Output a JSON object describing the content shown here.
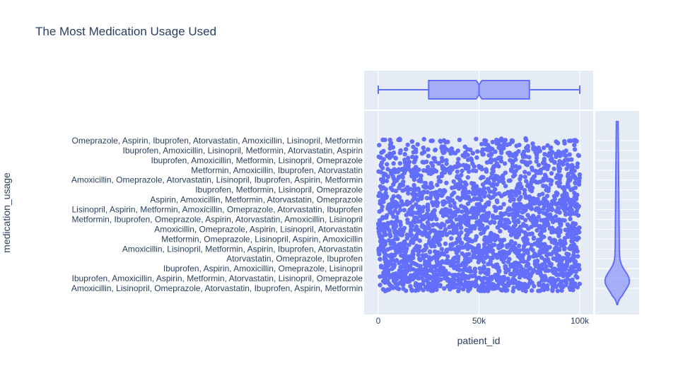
{
  "chart_data": {
    "type": "scatter",
    "title": "The Most Medication Usage Used",
    "xlabel": "patient_id",
    "ylabel": "medication_usage",
    "xlim": [
      -5000,
      106000
    ],
    "x_ticks": [
      {
        "value": 0,
        "label": "0"
      },
      {
        "value": 50000,
        "label": "50k"
      },
      {
        "value": 100000,
        "label": "100k"
      }
    ],
    "categories_top_to_bottom": [
      "Omeprazole, Aspirin, Ibuprofen, Atorvastatin, Amoxicillin, Lisinopril, Metformin",
      "Ibuprofen, Amoxicillin, Lisinopril, Metformin, Atorvastatin, Aspirin",
      "Ibuprofen, Amoxicillin, Metformin, Lisinopril, Omeprazole",
      "Metformin, Amoxicillin, Ibuprofen, Atorvastatin",
      "Amoxicillin, Omeprazole, Atorvastatin, Lisinopril, Ibuprofen, Aspirin, Metformin",
      "Ibuprofen, Metformin, Lisinopril, Omeprazole",
      "Aspirin, Amoxicillin, Metformin, Atorvastatin, Omeprazole",
      "Lisinopril, Aspirin, Metformin, Amoxicillin, Omeprazole, Atorvastatin, Ibuprofen",
      "Metformin, Ibuprofen, Omeprazole, Aspirin, Atorvastatin, Amoxicillin, Lisinopril",
      "Amoxicillin, Omeprazole, Aspirin, Lisinopril, Atorvastatin",
      "Metformin, Omeprazole, Lisinopril, Aspirin, Amoxicillin",
      "Amoxicillin, Lisinopril, Metformin, Aspirin, Ibuprofen, Atorvastatin",
      "Atorvastatin, Omeprazole, Ibuprofen",
      "Ibuprofen, Aspirin, Amoxicillin, Omeprazole, Lisinopril",
      "Ibuprofen, Amoxicillin, Aspirin, Metformin, Atorvastatin, Lisinopril, Omeprazole",
      "Amoxicillin, Lisinopril, Omeprazole, Atorvastatin, Ibuprofen, Aspirin, Metformin"
    ],
    "scatter": {
      "x_range": [
        0,
        100000
      ],
      "note_points_cover_all_categories": true
    },
    "marginal_x_box": {
      "min": 0,
      "q1": 25000,
      "median": 50000,
      "q3": 75000,
      "max": 100000
    },
    "marginal_y_violin": {
      "shape": "density concentrated at bottom categories, long thin tail to top"
    },
    "colors": {
      "marker": "#636efa",
      "plot_bg": "#e5ecf6",
      "grid": "#ffffff",
      "text": "#2a3f5f"
    }
  }
}
